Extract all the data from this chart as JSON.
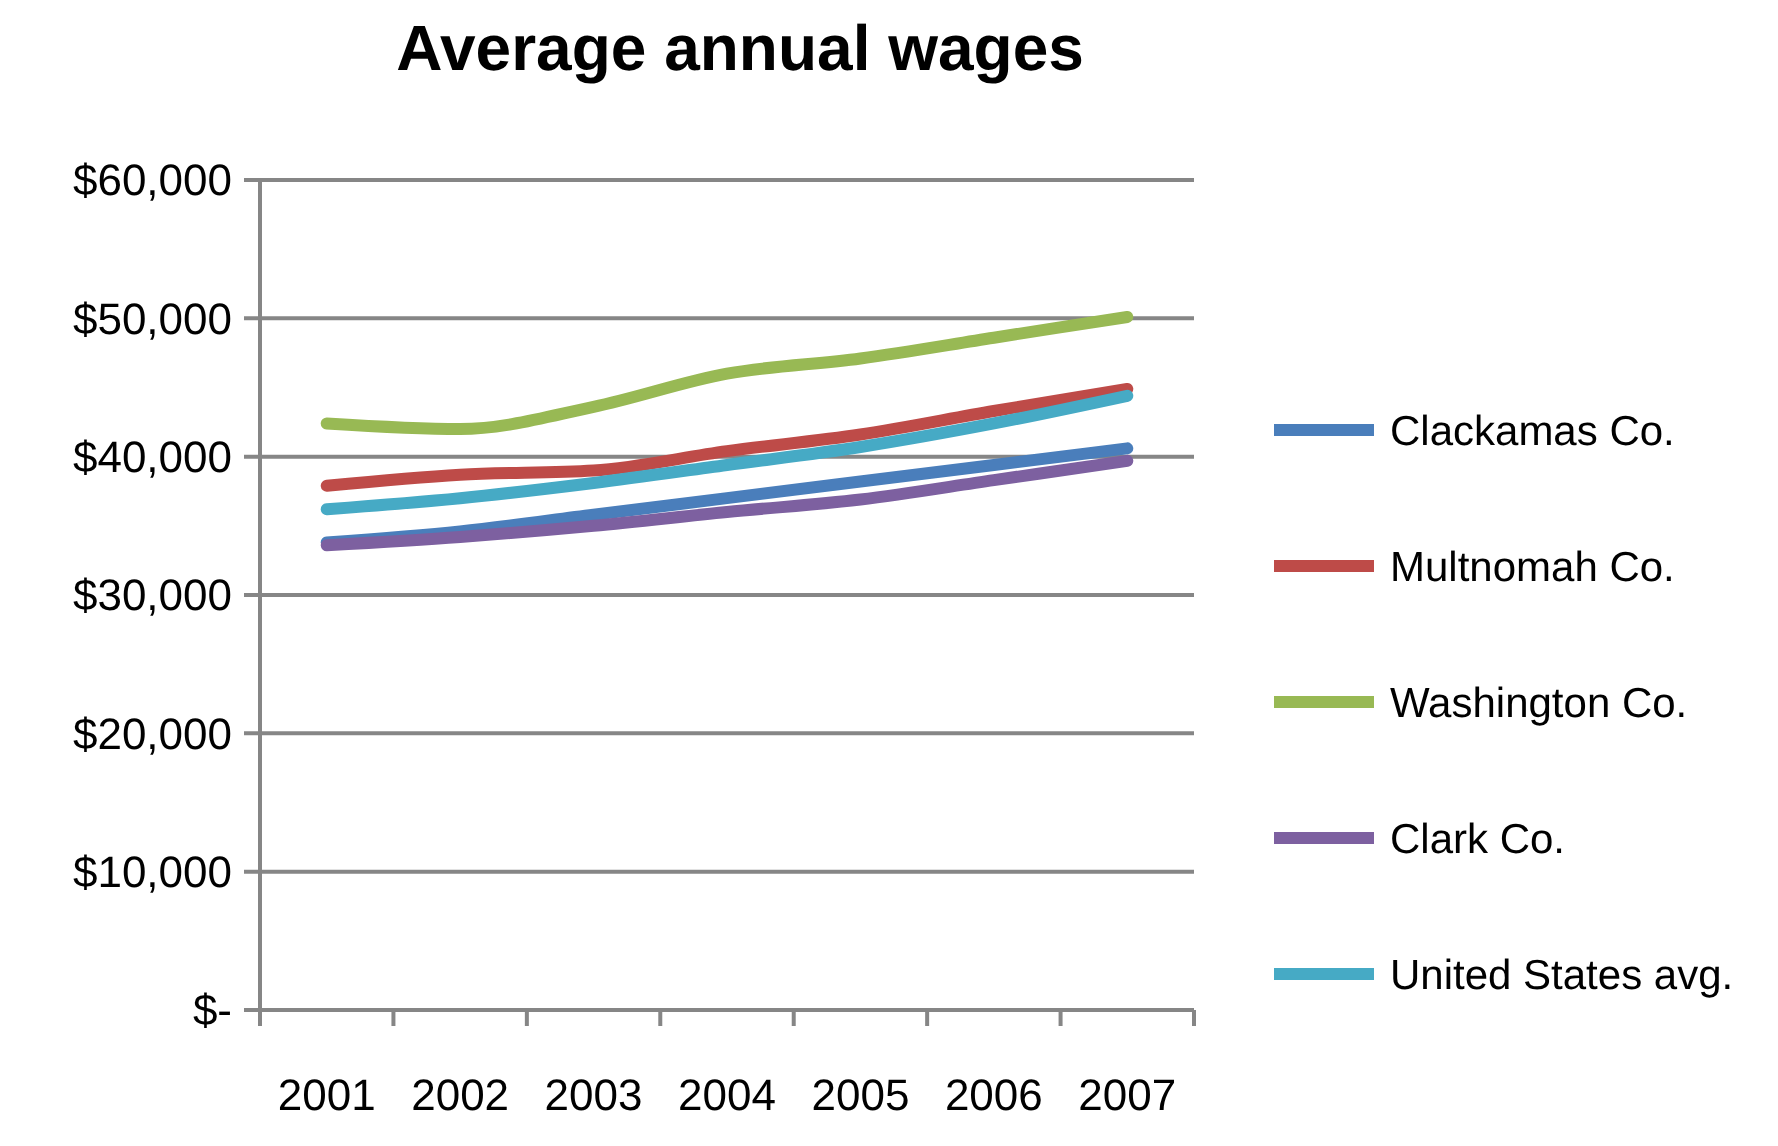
{
  "chart_data": {
    "type": "line",
    "title": "Average annual wages",
    "categories": [
      "2001",
      "2002",
      "2003",
      "2004",
      "2005",
      "2006",
      "2007"
    ],
    "series": [
      {
        "name": "Clackamas Co.",
        "color": "#4a7ebb",
        "values": [
          33800,
          34600,
          35800,
          37000,
          38200,
          39400,
          40600
        ]
      },
      {
        "name": "Multnomah Co.",
        "color": "#be4b48",
        "values": [
          37900,
          38700,
          39000,
          40400,
          41600,
          43300,
          44900
        ]
      },
      {
        "name": "Washington Co.",
        "color": "#98b954",
        "values": [
          42400,
          42000,
          43600,
          46000,
          47100,
          48600,
          50100
        ]
      },
      {
        "name": "Clark Co.",
        "color": "#7d60a0",
        "values": [
          33600,
          34200,
          35000,
          36000,
          36900,
          38300,
          39700
        ]
      },
      {
        "name": "United States avg.",
        "color": "#46aac5",
        "values": [
          36200,
          37000,
          38100,
          39400,
          40700,
          42400,
          44400
        ]
      }
    ],
    "ylim": [
      0,
      60000
    ],
    "yticks": [
      {
        "value": 0,
        "label": "$-"
      },
      {
        "value": 10000,
        "label": "$10,000"
      },
      {
        "value": 20000,
        "label": "$20,000"
      },
      {
        "value": 30000,
        "label": "$30,000"
      },
      {
        "value": 40000,
        "label": "$40,000"
      },
      {
        "value": 50000,
        "label": "$50,000"
      },
      {
        "value": 60000,
        "label": "$60,000"
      }
    ],
    "grid": "y",
    "legend": "right",
    "marker": "none",
    "line_style": "solid"
  }
}
